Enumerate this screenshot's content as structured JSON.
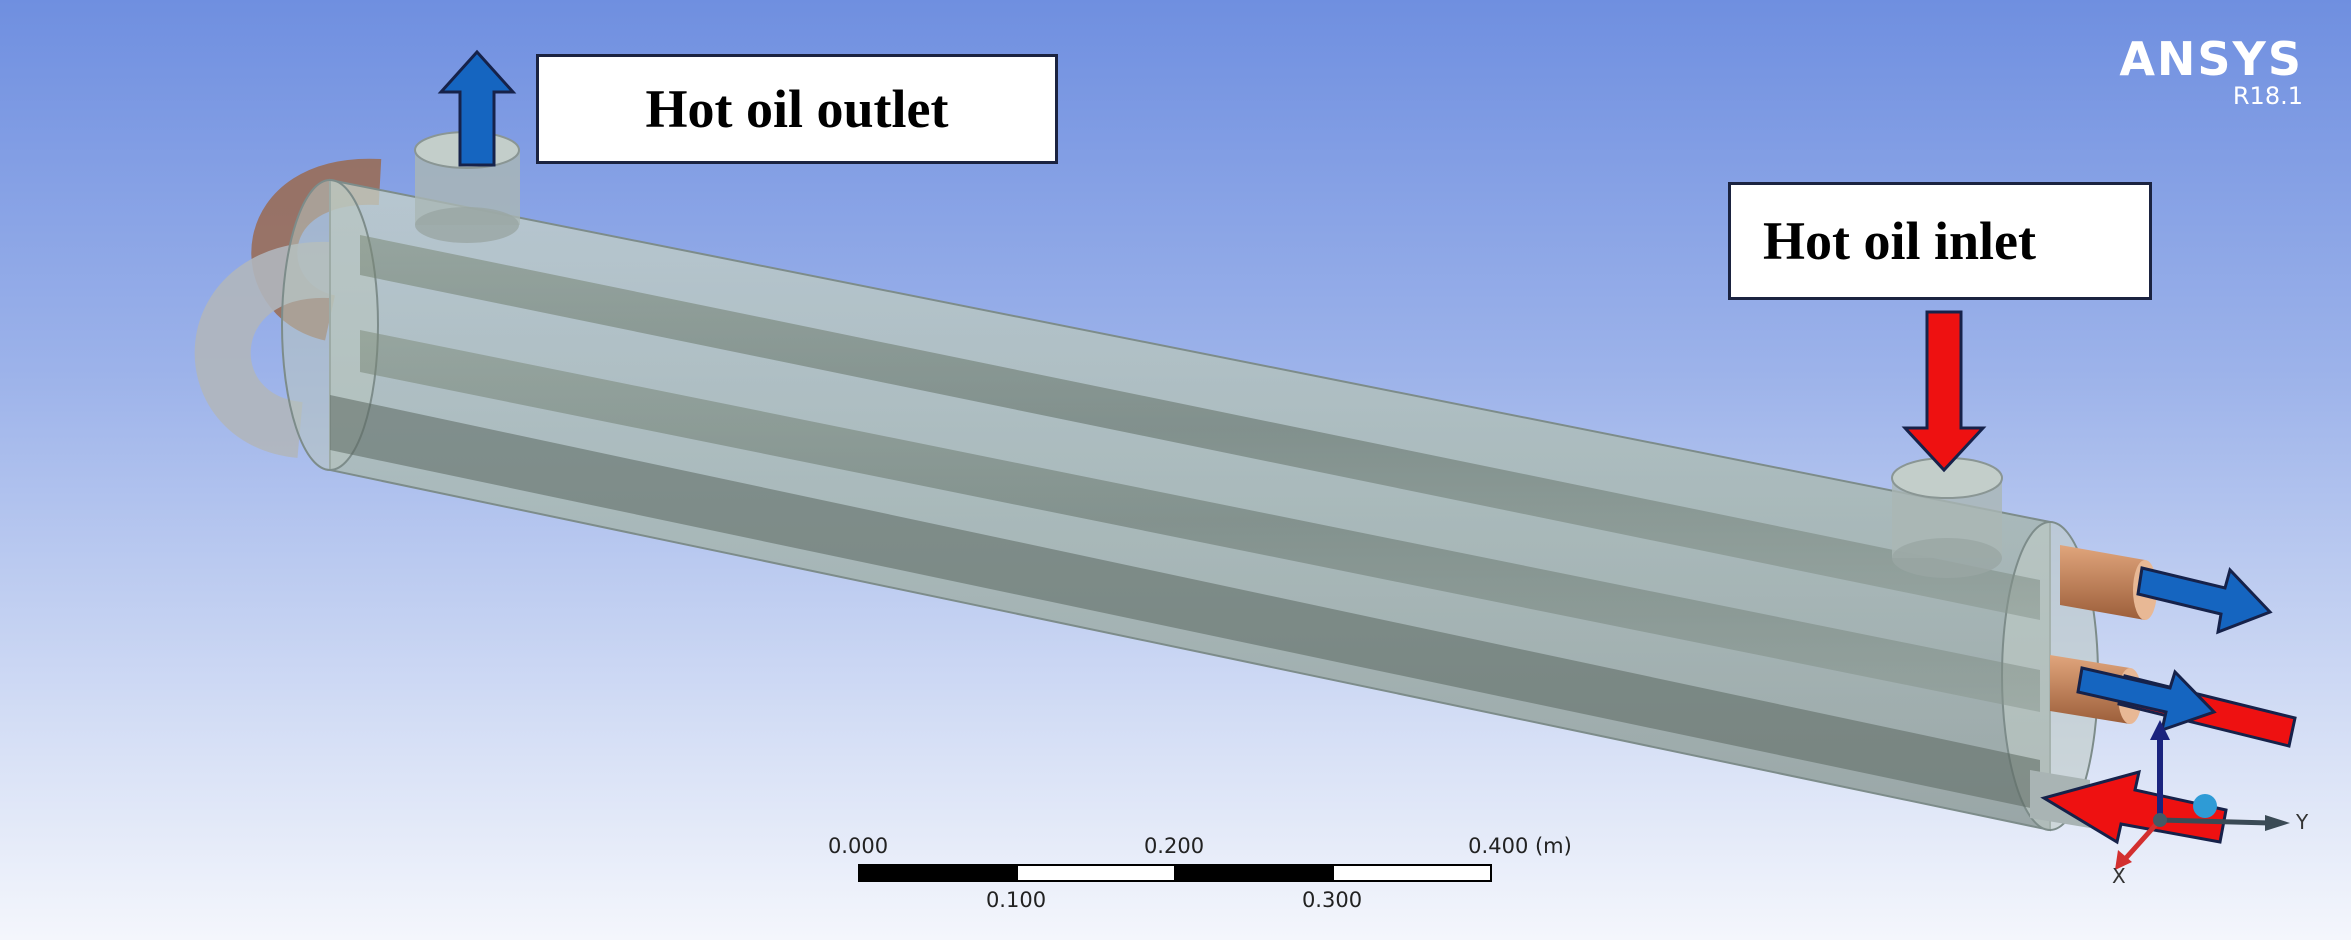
{
  "labels": {
    "outlet": "Hot oil outlet",
    "inlet": "Hot oil inlet"
  },
  "brand": {
    "name": "ANSYS",
    "version": "R18.1"
  },
  "scale_bar": {
    "upper_ticks": [
      "0.000",
      "0.200",
      "0.400 (m)"
    ],
    "lower_ticks": [
      "0.100",
      "0.300"
    ]
  },
  "triad": {
    "y_label": "Y",
    "x_label": "X"
  },
  "colors": {
    "hot_arrow": "#ee1111",
    "cold_arrow": "#1565c0",
    "arrow_outline": "#16224a",
    "shell": "#b9c8c4",
    "copper": "#c98a5c"
  }
}
